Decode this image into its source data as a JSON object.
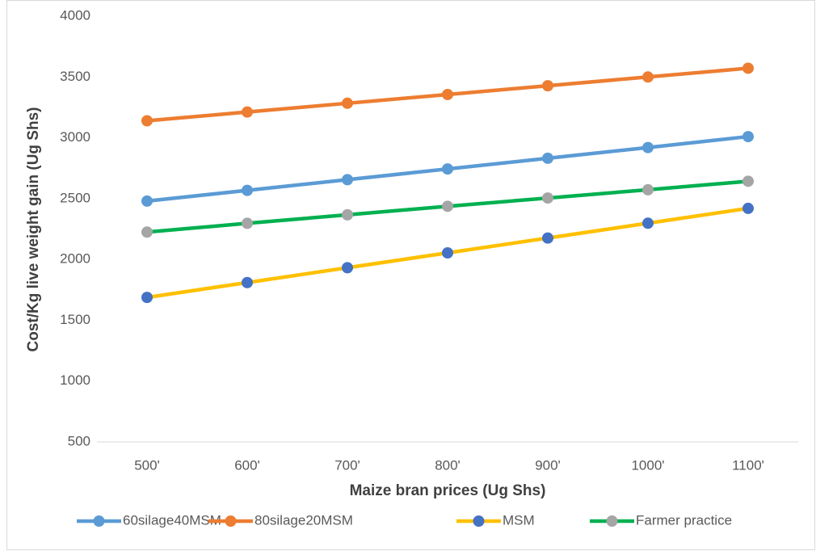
{
  "chart_data": {
    "type": "line",
    "x_label": "Maize bran  prices (Ug Shs)",
    "y_label": "Cost/Kg live weight gain (Ug Shs)",
    "categories": [
      "500'",
      "600'",
      "700'",
      "800'",
      "900'",
      "1000'",
      "1100'"
    ],
    "series": [
      {
        "name": "60silage40MSM",
        "color": "#5b9bd5",
        "marker_color": "#5b9bd5",
        "values": [
          2480,
          2568,
          2656,
          2744,
          2832,
          2920,
          3010
        ]
      },
      {
        "name": "80silage20MSM",
        "color": "#ed7d31",
        "marker_color": "#ed7d31",
        "values": [
          3140,
          3212,
          3284,
          3356,
          3428,
          3500,
          3572
        ]
      },
      {
        "name": "MSM",
        "color": "#ffc000",
        "marker_color": "#4472c4",
        "values": [
          1688,
          1810,
          1932,
          2054,
          2176,
          2298,
          2420
        ]
      },
      {
        "name": "Farmer practice",
        "color": "#00b050",
        "marker_color": "#a5a5a5",
        "values": [
          2225,
          2297,
          2367,
          2437,
          2505,
          2573,
          2643
        ]
      }
    ],
    "ylim": [
      500,
      4000
    ],
    "yticks": [
      500,
      1000,
      1500,
      2000,
      2500,
      3000,
      3500,
      4000
    ],
    "grid": false,
    "legend": "bottom"
  }
}
